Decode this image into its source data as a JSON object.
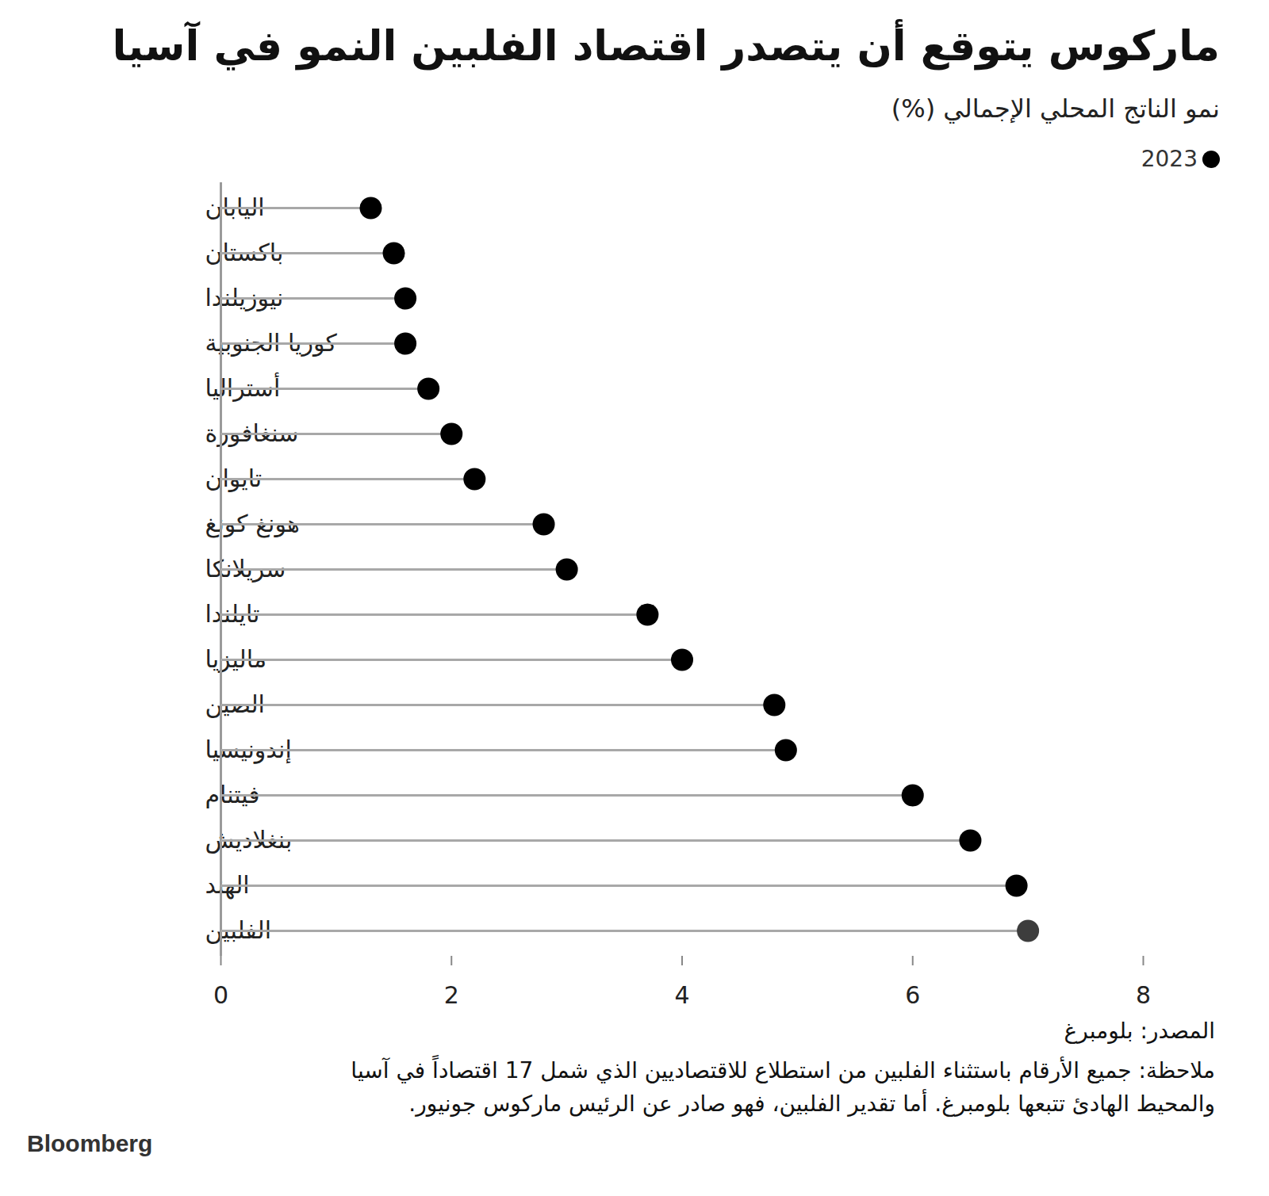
{
  "chart_data": {
    "type": "lollipop",
    "title": "ماركوس يتوقع أن يتصدر اقتصاد الفلبين النمو في آسيا",
    "subtitle": "نمو الناتج المحلي الإجمالي (%)",
    "orientation": "horizontal",
    "legend": "top-right",
    "grid": false,
    "categories": [
      "اليابان",
      "باكستان",
      "نيوزيلندا",
      "كوريا الجنوبية",
      "أستراليا",
      "سنغافورة",
      "تايوان",
      "هونغ كونغ",
      "سريلانكا",
      "تايلندا",
      "ماليزيا",
      "الصين",
      "إندونيسيا",
      "فيتنام",
      "بنغلاديش",
      "الهند",
      "الفلبين"
    ],
    "series": [
      {
        "name": "2023",
        "color": "#000000",
        "colors": [
          "#000000",
          "#000000",
          "#000000",
          "#000000",
          "#000000",
          "#000000",
          "#000000",
          "#000000",
          "#000000",
          "#000000",
          "#000000",
          "#000000",
          "#000000",
          "#000000",
          "#000000",
          "#000000",
          "#3d3d3d"
        ],
        "values": [
          1.3,
          1.5,
          1.6,
          1.6,
          1.8,
          2.0,
          2.2,
          2.8,
          3.0,
          3.7,
          4.0,
          4.8,
          4.9,
          6.0,
          6.5,
          6.9,
          7.0
        ]
      }
    ],
    "xlim": [
      0,
      8
    ],
    "xticks": [
      0,
      2,
      4,
      6,
      8
    ],
    "source": "المصدر: بلومبرغ",
    "note": "ملاحظة: جميع الأرقام باستثناء الفلبين من استطلاع للاقتصاديين الذي شمل 17 اقتصاداً في آسيا والمحيط الهادئ تتبعها بلومبرغ. أما تقدير الفلبين، فهو صادر عن الرئيس ماركوس جونيور.",
    "logo": "Bloomberg"
  }
}
